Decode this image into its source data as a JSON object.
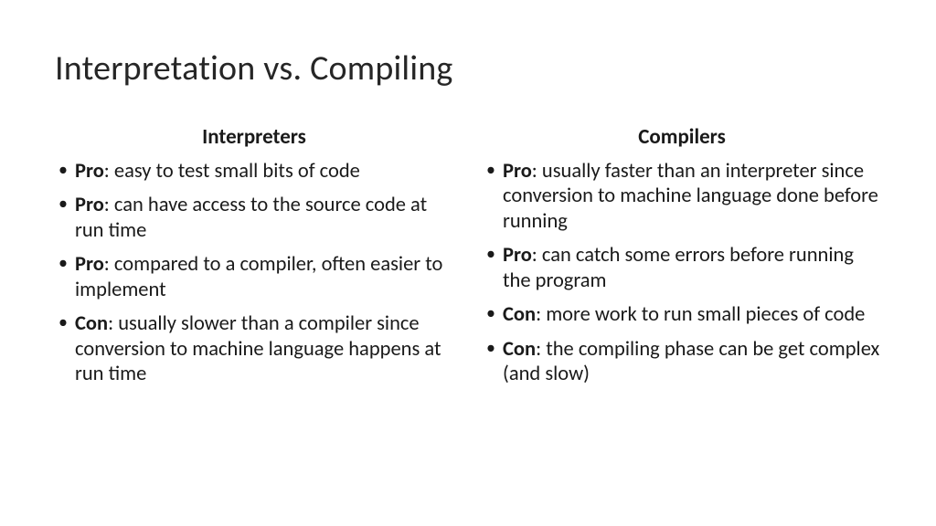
{
  "slide": {
    "title": "Interpretation vs. Compiling",
    "background_color": "#ffffff",
    "text_color": "#1a1a1a",
    "title_fontsize": 38,
    "body_fontsize": 22.5,
    "heading_fontsize": 23
  },
  "left": {
    "heading": "Interpreters",
    "items": [
      {
        "label": "Pro",
        "text": ": easy to test small bits of code"
      },
      {
        "label": "Pro",
        "text": ": can have access to the source code at run time"
      },
      {
        "label": "Pro",
        "text": ": compared to a compiler, often easier to implement"
      },
      {
        "label": "Con",
        "text": ": usually slower than a compiler since conversion to machine language happens at run time"
      }
    ]
  },
  "right": {
    "heading": "Compilers",
    "items": [
      {
        "label": "Pro",
        "text": ": usually faster than an interpreter since conversion to machine language done before running"
      },
      {
        "label": "Pro",
        "text": ": can catch some errors before running the program"
      },
      {
        "label": "Con",
        "text": ": more work to run small pieces of code"
      },
      {
        "label": "Con",
        "text": ": the compiling phase can be get complex (and slow)"
      }
    ]
  }
}
